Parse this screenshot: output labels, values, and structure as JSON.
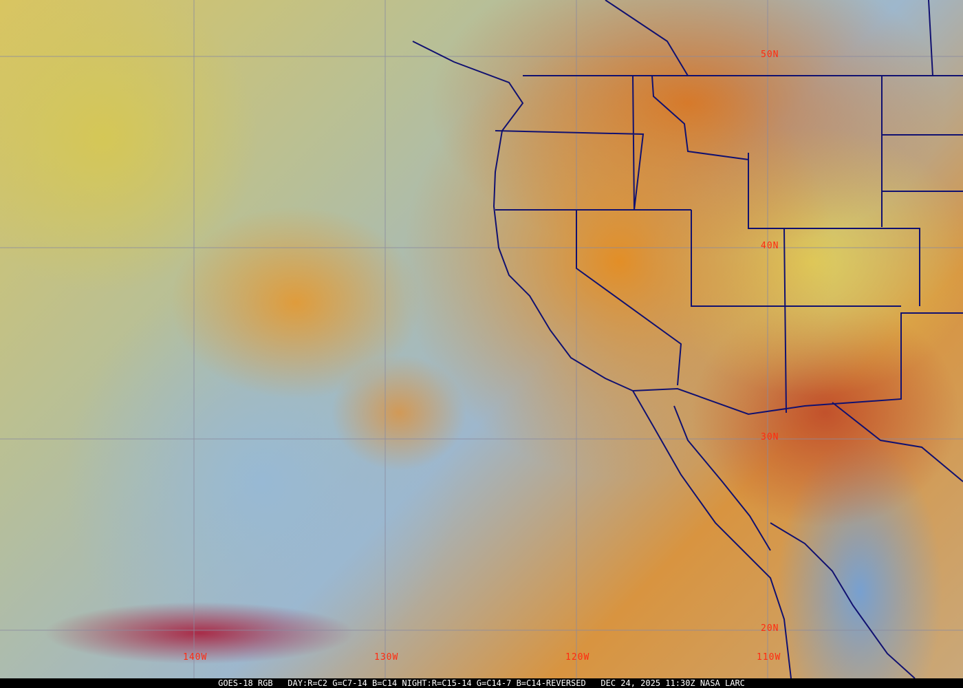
{
  "caption": "GOES-18 RGB   DAY:R=C2 G=C7-14 B=C14 NIGHT:R=C15-14 G=C14-7 B=C14-REVERSED   DEC 24, 2025 11:30Z NASA LARC",
  "grid_labels": {
    "lat": [
      "50N",
      "40N",
      "30N",
      "20N"
    ],
    "lon": [
      "140W",
      "130W",
      "120W",
      "110W"
    ]
  },
  "colors": {
    "grid": "#8a8aa0",
    "borders": "#101070",
    "labels": "#ff2a10"
  }
}
